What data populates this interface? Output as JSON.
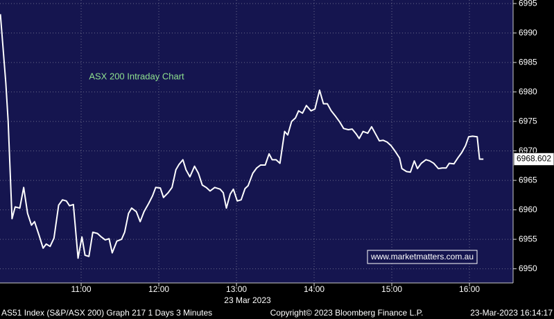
{
  "chart_data": {
    "type": "line",
    "annotation": "ASX 200 Intraday Chart",
    "watermark": "www.marketmatters.com.au",
    "xlabel": "23 Mar 2023",
    "color": "#ffffff",
    "grid": true,
    "xlim": [
      9.955,
      16.562
    ],
    "ylim": [
      6947.6,
      6995.6
    ],
    "xticks": [
      {
        "value": 11,
        "label": "11:00"
      },
      {
        "value": 12,
        "label": "12:00"
      },
      {
        "value": 13,
        "label": "13:00"
      },
      {
        "value": 14,
        "label": "14:00"
      },
      {
        "value": 15,
        "label": "15:00"
      },
      {
        "value": 16,
        "label": "16:00"
      }
    ],
    "yticks": [
      6950,
      6955,
      6960,
      6965,
      6970,
      6975,
      6980,
      6985,
      6990,
      6995
    ],
    "x": [
      9.96,
      10.03,
      10.06,
      10.11,
      10.15,
      10.21,
      10.26,
      10.31,
      10.36,
      10.4,
      10.46,
      10.51,
      10.55,
      10.6,
      10.65,
      10.71,
      10.76,
      10.81,
      10.85,
      10.9,
      10.96,
      11.01,
      11.05,
      11.1,
      11.15,
      11.21,
      11.26,
      11.31,
      11.36,
      11.4,
      11.46,
      11.52,
      11.56,
      11.61,
      11.65,
      11.71,
      11.76,
      11.81,
      11.87,
      11.92,
      11.96,
      12.02,
      12.06,
      12.12,
      12.17,
      12.22,
      12.26,
      12.31,
      12.35,
      12.4,
      12.46,
      12.51,
      12.56,
      12.61,
      12.66,
      12.72,
      12.79,
      12.83,
      12.87,
      12.92,
      12.96,
      13.01,
      13.06,
      13.11,
      13.15,
      13.21,
      13.26,
      13.31,
      13.37,
      13.42,
      13.46,
      13.51,
      13.56,
      13.62,
      13.66,
      13.71,
      13.76,
      13.8,
      13.85,
      13.9,
      13.96,
      14.01,
      14.07,
      14.12,
      14.17,
      14.22,
      14.28,
      14.33,
      14.38,
      14.44,
      14.49,
      14.54,
      14.58,
      14.63,
      14.69,
      14.74,
      14.79,
      14.84,
      14.89,
      14.94,
      14.99,
      15.04,
      15.1,
      15.13,
      15.19,
      15.24,
      15.29,
      15.33,
      15.38,
      15.44,
      15.49,
      15.54,
      15.6,
      15.65,
      15.7,
      15.74,
      15.8,
      15.85,
      15.9,
      15.95,
      15.99,
      16.04,
      16.1,
      16.13,
      16.18
    ],
    "values": [
      6993.2,
      6981.5,
      6975,
      6958.5,
      6960.5,
      6960.3,
      6963.8,
      6959.4,
      6957.4,
      6958,
      6955.6,
      6953.5,
      6954.2,
      6953.8,
      6955.2,
      6960.8,
      6961.7,
      6961.5,
      6960.7,
      6960.9,
      6951.8,
      6955.4,
      6952.3,
      6952.1,
      6956.2,
      6956,
      6955.4,
      6954.9,
      6955.1,
      6952.7,
      6954.7,
      6955,
      6956.2,
      6959.4,
      6960.3,
      6959.7,
      6958,
      6959.7,
      6961.1,
      6962.4,
      6963.8,
      6963.7,
      6962.1,
      6962.9,
      6963.8,
      6966.8,
      6967.7,
      6968.5,
      6966.8,
      6965.6,
      6967.4,
      6966.2,
      6964.2,
      6963.8,
      6963.2,
      6963.8,
      6963.5,
      6962.9,
      6960.3,
      6962.7,
      6963.5,
      6961.5,
      6961.7,
      6963.6,
      6964.1,
      6966.2,
      6967.1,
      6967.6,
      6967.6,
      6969.5,
      6968.5,
      6968.5,
      6967.9,
      6973.3,
      6972.7,
      6975,
      6975.6,
      6976.8,
      6976.4,
      6977.7,
      6976.8,
      6977.1,
      6980.3,
      6978,
      6978,
      6976.8,
      6975.8,
      6974.9,
      6973.8,
      6973.6,
      6973.7,
      6972.9,
      6972.1,
      6973.3,
      6973,
      6974.1,
      6972.9,
      6971.7,
      6971.8,
      6971.5,
      6970.9,
      6970,
      6968.8,
      6967,
      6966.5,
      6966.4,
      6968.3,
      6967,
      6967.9,
      6968.5,
      6968.3,
      6967.9,
      6967,
      6967.1,
      6967.1,
      6967.9,
      6967.8,
      6968.8,
      6969.7,
      6970.9,
      6972.4,
      6972.5,
      6972.4,
      6968.6,
      6968.602
    ]
  },
  "footer": {
    "left": "AS51 Index (S&P/ASX 200) Graph 217 1 Days 3 Minutes",
    "center": "Copyright© 2023 Bloomberg Finance L.P.",
    "right": "23-Mar-2023 16:14:17"
  }
}
